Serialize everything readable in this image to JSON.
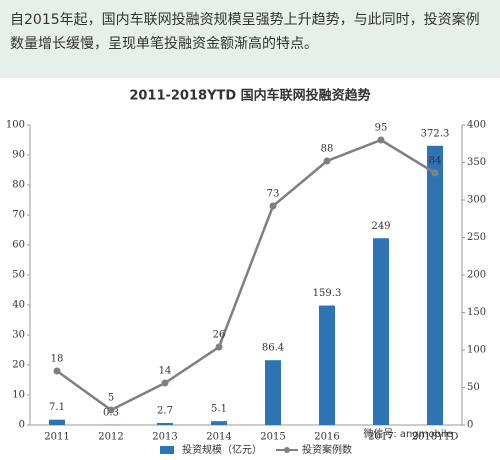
{
  "intro": "自2015年起，国内车联网投融资规模呈强势上升趋势，与此同时，投资案例数量增长缓慢，呈现单笔投融资金额渐高的特点。",
  "chart_data": {
    "type": "bar-line",
    "title": "2011-2018YTD 国内车联网投融资趋势",
    "categories": [
      "2011",
      "2012",
      "2013",
      "2014",
      "2015",
      "2016",
      "2017",
      "2018YTD"
    ],
    "series": [
      {
        "name": "投资规模（亿元）",
        "type": "bar",
        "axis": "y2",
        "color": "#2e74b5",
        "values": [
          7.1,
          0.3,
          2.7,
          5.1,
          86.4,
          159.3,
          249,
          372.3
        ]
      },
      {
        "name": "投资案例数",
        "type": "line",
        "color": "#7f7f7f",
        "values": [
          18,
          5,
          14,
          26,
          73,
          88,
          95,
          84
        ]
      }
    ],
    "ylim": [
      0,
      100
    ],
    "yticks": [
      0,
      10,
      20,
      30,
      40,
      50,
      60,
      70,
      80,
      90,
      100
    ],
    "y2lim": [
      0,
      400
    ],
    "y2ticks": [
      0,
      50,
      100,
      150,
      200,
      250,
      300,
      350,
      400
    ],
    "watermark": "微信号: angmobile"
  }
}
